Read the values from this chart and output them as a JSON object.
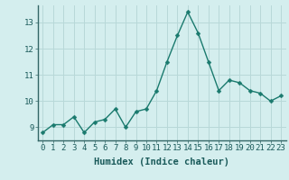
{
  "x": [
    0,
    1,
    2,
    3,
    4,
    5,
    6,
    7,
    8,
    9,
    10,
    11,
    12,
    13,
    14,
    15,
    16,
    17,
    18,
    19,
    20,
    21,
    22,
    23
  ],
  "y": [
    8.8,
    9.1,
    9.1,
    9.4,
    8.8,
    9.2,
    9.3,
    9.7,
    9.0,
    9.6,
    9.7,
    10.4,
    11.5,
    12.5,
    13.4,
    12.6,
    11.5,
    10.4,
    10.8,
    10.7,
    10.4,
    10.3,
    10.0,
    10.2
  ],
  "line_color": "#1a7a6e",
  "marker_color": "#1a7a6e",
  "bg_color": "#d4eeee",
  "grid_color": "#b8d8d8",
  "xlabel": "Humidex (Indice chaleur)",
  "ylim": [
    8.5,
    13.65
  ],
  "yticks": [
    9,
    10,
    11,
    12,
    13
  ],
  "xticks": [
    0,
    1,
    2,
    3,
    4,
    5,
    6,
    7,
    8,
    9,
    10,
    11,
    12,
    13,
    14,
    15,
    16,
    17,
    18,
    19,
    20,
    21,
    22,
    23
  ],
  "xlabel_fontsize": 7.5,
  "tick_fontsize": 6.5,
  "marker_size": 2.5,
  "line_width": 1.0,
  "text_color": "#1a5a5a"
}
